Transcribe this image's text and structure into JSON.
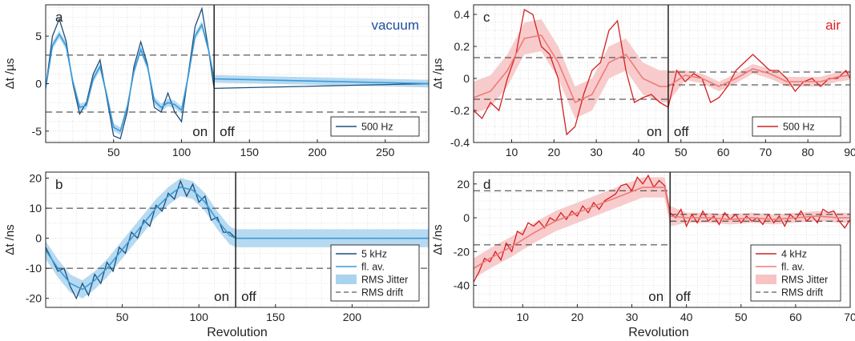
{
  "figure": {
    "xlabel": "Revolution"
  },
  "chart_data": [
    {
      "id": "a",
      "type": "line",
      "panel_label": "a",
      "condition_label": "vacuum",
      "condition_color": "#1f4e9c",
      "ylabel": "Δt /µs",
      "xlabel": "",
      "xlim": [
        0,
        282
      ],
      "ylim": [
        -6.2,
        8.3
      ],
      "xticks": [
        50,
        100,
        150,
        200,
        250
      ],
      "yticks": [
        -5,
        0,
        5
      ],
      "xsplit": 124,
      "on_label": "on",
      "off_label": "off",
      "drift_lines": [
        3,
        -3
      ],
      "jitter": 0.4,
      "color_raw": "#1b4f7a",
      "color_avg": "#3a9ad9",
      "color_band": "#a9d3ee",
      "legend": [
        "500 Hz"
      ],
      "series": [
        {
          "name": "500 Hz",
          "x": [
            0,
            5,
            10,
            15,
            20,
            25,
            30,
            35,
            40,
            45,
            50,
            55,
            60,
            65,
            70,
            75,
            80,
            85,
            90,
            95,
            100,
            105,
            110,
            115,
            120,
            124,
            282
          ],
          "y": [
            -0.5,
            5,
            6.8,
            4.5,
            0,
            -3.2,
            -2,
            1,
            2.5,
            -1.5,
            -5.5,
            -5.8,
            -3,
            1.8,
            4.4,
            2,
            -2.5,
            -3,
            -1,
            -3,
            -4,
            1,
            6,
            7.9,
            3.5,
            -0.5,
            0
          ]
        },
        {
          "name": "fl. av.",
          "x": [
            0,
            5,
            10,
            15,
            20,
            25,
            30,
            35,
            40,
            45,
            50,
            55,
            60,
            65,
            70,
            75,
            80,
            85,
            90,
            95,
            100,
            105,
            110,
            115,
            120,
            124,
            282
          ],
          "y": [
            -0.5,
            4,
            5.2,
            4,
            0.2,
            -2.5,
            -2.3,
            0.5,
            1.8,
            -1.2,
            -4.6,
            -5,
            -2.5,
            1.3,
            3.6,
            1.8,
            -1.8,
            -2.5,
            -2,
            -2.2,
            -2.8,
            0.8,
            5,
            6.2,
            3.5,
            0.5,
            0
          ]
        }
      ]
    },
    {
      "id": "b",
      "type": "line",
      "panel_label": "b",
      "condition_label": "",
      "condition_color": "#1f4e9c",
      "ylabel": "Δt /ns",
      "xlabel": "Revolution",
      "xlim": [
        0,
        250
      ],
      "ylim": [
        -23,
        22
      ],
      "xticks": [
        50,
        100,
        150,
        200
      ],
      "yticks": [
        -20,
        -10,
        0,
        10,
        20
      ],
      "xsplit": 124,
      "on_label": "on",
      "off_label": "off",
      "drift_lines": [
        10,
        -10
      ],
      "jitter": 3,
      "color_raw": "#1b4f7a",
      "color_avg": "#3a9ad9",
      "color_band": "#a9d3ee",
      "legend": [
        "5 kHz",
        "fl. av.",
        "RMS Jitter",
        "RMS drift"
      ],
      "series": [
        {
          "name": "5 kHz",
          "x": [
            0,
            4,
            8,
            12,
            16,
            20,
            24,
            28,
            32,
            36,
            40,
            44,
            48,
            52,
            56,
            60,
            64,
            68,
            72,
            76,
            80,
            84,
            88,
            92,
            96,
            100,
            104,
            108,
            112,
            116,
            120,
            124,
            250
          ],
          "y": [
            -3,
            -7,
            -11,
            -10,
            -16,
            -20,
            -15,
            -19,
            -12,
            -15,
            -8,
            -11,
            -3,
            -5,
            2,
            0,
            6,
            4,
            11,
            9,
            15,
            13,
            19,
            14,
            18,
            12,
            14,
            6,
            7,
            2,
            2,
            0,
            0
          ]
        },
        {
          "name": "fl. av.",
          "x": [
            0,
            8,
            16,
            24,
            32,
            40,
            48,
            56,
            64,
            72,
            80,
            88,
            96,
            104,
            112,
            120,
            124,
            250
          ],
          "y": [
            -4,
            -10,
            -15,
            -17,
            -14,
            -10,
            -5,
            0,
            5,
            10,
            14,
            17,
            16,
            12,
            6,
            1,
            0,
            0
          ]
        }
      ]
    },
    {
      "id": "c",
      "type": "line",
      "panel_label": "c",
      "condition_label": "air",
      "condition_color": "#e02020",
      "ylabel": "Δt /µs",
      "xlabel": "",
      "xlim": [
        1,
        90
      ],
      "ylim": [
        -0.4,
        0.46
      ],
      "xticks": [
        10,
        20,
        30,
        40,
        50,
        60,
        70,
        80,
        90
      ],
      "yticks": [
        -0.4,
        -0.2,
        0,
        0.2,
        0.4
      ],
      "ytick_labels": [
        "-0.4",
        "-0.2",
        "0",
        "0.2",
        "0.4"
      ],
      "xsplit": 47,
      "on_label": "on",
      "off_label": "off",
      "drift_lines": [
        0.13,
        -0.13
      ],
      "drift_lines_right": [
        0.04,
        -0.04
      ],
      "jitter": 0.1,
      "jitter_right": 0.03,
      "color_raw": "#d42020",
      "color_avg": "#f07a7a",
      "color_band": "#f7c3c3",
      "legend": [
        "500 Hz"
      ],
      "series": [
        {
          "name": "500 Hz",
          "x": [
            1,
            3,
            5,
            7,
            9,
            11,
            13,
            15,
            17,
            19,
            21,
            23,
            25,
            27,
            29,
            31,
            33,
            35,
            37,
            39,
            41,
            43,
            45,
            47,
            49,
            51,
            53,
            55,
            57,
            59,
            61,
            63,
            65,
            67,
            69,
            71,
            73,
            75,
            77,
            79,
            81,
            83,
            85,
            87,
            89,
            90
          ],
          "y": [
            -0.2,
            -0.25,
            -0.15,
            -0.2,
            0,
            0.15,
            0.43,
            0.4,
            0.2,
            0.15,
            0,
            -0.35,
            -0.3,
            -0.1,
            0.05,
            0.1,
            0.3,
            0.36,
            0.05,
            -0.15,
            -0.12,
            -0.1,
            -0.15,
            -0.18,
            0.05,
            -0.02,
            0.03,
            0,
            -0.15,
            -0.12,
            -0.05,
            0.05,
            0.1,
            0.15,
            0.1,
            0.05,
            0.05,
            0,
            -0.08,
            -0.02,
            0,
            -0.05,
            0,
            0,
            0.05,
            0
          ]
        },
        {
          "name": "fl. av.",
          "x": [
            1,
            5,
            9,
            13,
            17,
            21,
            25,
            29,
            33,
            37,
            41,
            45,
            47,
            51,
            55,
            59,
            63,
            67,
            71,
            75,
            79,
            83,
            87,
            90
          ],
          "y": [
            -0.12,
            -0.08,
            0.05,
            0.25,
            0.27,
            0.1,
            -0.15,
            -0.1,
            0.1,
            0.15,
            0,
            -0.05,
            -0.05,
            0.02,
            0,
            -0.05,
            0,
            0.06,
            0.03,
            -0.02,
            -0.02,
            -0.02,
            0.01,
            0.02
          ]
        }
      ]
    },
    {
      "id": "d",
      "type": "line",
      "panel_label": "d",
      "condition_label": "",
      "condition_color": "#e02020",
      "ylabel": "Δt /ns",
      "xlabel": "Revolution",
      "xlim": [
        1,
        70
      ],
      "ylim": [
        -53,
        27
      ],
      "xticks": [
        10,
        20,
        30,
        40,
        50,
        60,
        70
      ],
      "yticks": [
        -40,
        -20,
        0,
        20
      ],
      "xsplit": 37,
      "on_label": "on",
      "off_label": "off",
      "drift_lines": [
        16,
        -16
      ],
      "drift_lines_right": [
        2,
        -2
      ],
      "jitter": 6,
      "jitter_right": 3,
      "color_raw": "#d42020",
      "color_avg": "#f07a7a",
      "color_band": "#f7c3c3",
      "legend": [
        "4 kHz",
        "fl. av.",
        "RMS Jitter",
        "RMS drift"
      ],
      "series": [
        {
          "name": "4 kHz",
          "x": [
            1,
            2,
            3,
            4,
            5,
            6,
            7,
            8,
            9,
            10,
            11,
            12,
            13,
            14,
            15,
            16,
            17,
            18,
            19,
            20,
            21,
            22,
            23,
            24,
            25,
            26,
            27,
            28,
            29,
            30,
            31,
            32,
            33,
            34,
            35,
            36,
            37,
            38,
            39,
            40,
            41,
            42,
            43,
            44,
            45,
            46,
            47,
            48,
            49,
            50,
            51,
            52,
            53,
            54,
            55,
            56,
            57,
            58,
            59,
            60,
            61,
            62,
            63,
            64,
            65,
            66,
            67,
            68,
            69,
            70
          ],
          "y": [
            -38,
            -32,
            -24,
            -26,
            -20,
            -25,
            -15,
            -20,
            -8,
            -10,
            -3,
            -5,
            -2,
            -6,
            0,
            -2,
            3,
            -1,
            4,
            1,
            7,
            3,
            9,
            5,
            10,
            12,
            14,
            19,
            20,
            16,
            24,
            20,
            25,
            18,
            22,
            19,
            3,
            0,
            5,
            -5,
            2,
            -3,
            4,
            -2,
            1,
            -4,
            3,
            -1,
            2,
            -3,
            1,
            -2,
            0,
            -4,
            2,
            -3,
            1,
            -5,
            2,
            -1,
            4,
            -2,
            1,
            -3,
            5,
            3,
            4,
            -2,
            -6,
            -1
          ]
        },
        {
          "name": "fl. av.",
          "x": [
            1,
            4,
            8,
            12,
            16,
            20,
            24,
            28,
            32,
            36,
            37,
            40,
            44,
            48,
            52,
            56,
            60,
            64,
            68,
            70
          ],
          "y": [
            -30,
            -24,
            -17,
            -9,
            -2,
            3,
            8,
            13,
            18,
            18,
            1,
            0,
            0,
            -1,
            0,
            -1,
            0,
            1,
            0,
            0
          ]
        }
      ]
    }
  ]
}
